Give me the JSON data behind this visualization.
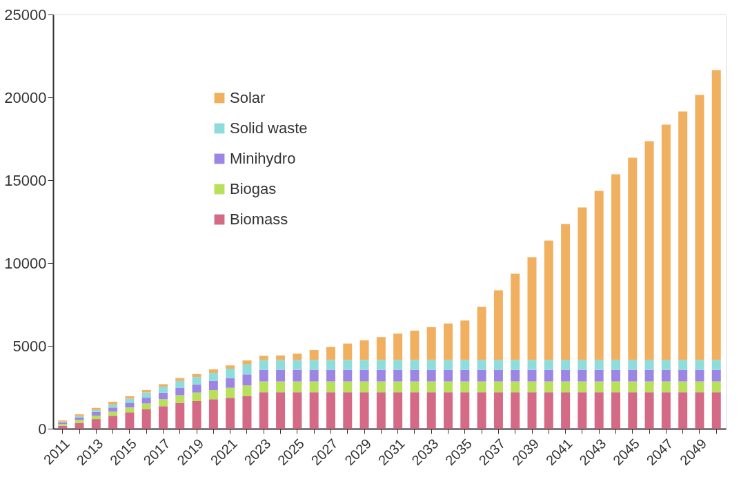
{
  "chart_data": {
    "type": "bar",
    "stacked": true,
    "categories": [
      "2011",
      null,
      "2013",
      null,
      "2015",
      null,
      "2017",
      null,
      "2019",
      null,
      "2021",
      null,
      "2023",
      null,
      "2025",
      null,
      "2027",
      null,
      "2029",
      null,
      "2031",
      null,
      "2033",
      null,
      "2035",
      null,
      "2037",
      null,
      "2039",
      null,
      "2041",
      null,
      "2043",
      null,
      "2045",
      null,
      "2047",
      null,
      "2049",
      null
    ],
    "series": [
      {
        "name": "Biomass",
        "color": "#d46a85",
        "values": [
          180,
          350,
          580,
          780,
          990,
          1170,
          1360,
          1560,
          1670,
          1780,
          1860,
          1960,
          2200,
          2200,
          2200,
          2200,
          2200,
          2200,
          2200,
          2200,
          2200,
          2200,
          2200,
          2200,
          2200,
          2200,
          2200,
          2200,
          2200,
          2200,
          2200,
          2200,
          2200,
          2200,
          2200,
          2200,
          2200,
          2200,
          2200,
          2200
        ]
      },
      {
        "name": "Biogas",
        "color": "#b8e05a",
        "values": [
          100,
          190,
          210,
          250,
          290,
          350,
          420,
          460,
          510,
          550,
          610,
          650,
          650,
          650,
          650,
          650,
          650,
          650,
          650,
          650,
          650,
          650,
          650,
          650,
          650,
          650,
          650,
          650,
          650,
          650,
          650,
          650,
          650,
          650,
          650,
          650,
          650,
          650,
          650,
          650
        ]
      },
      {
        "name": "Minihydro",
        "color": "#9d86e3",
        "values": [
          90,
          150,
          230,
          250,
          290,
          350,
          400,
          440,
          480,
          560,
          580,
          670,
          700,
          700,
          700,
          700,
          700,
          700,
          700,
          700,
          700,
          700,
          700,
          700,
          700,
          700,
          700,
          700,
          700,
          700,
          700,
          700,
          700,
          700,
          700,
          700,
          700,
          700,
          700,
          700
        ]
      },
      {
        "name": "Solid waste",
        "color": "#8fdcdc",
        "values": [
          60,
          70,
          110,
          180,
          240,
          320,
          360,
          420,
          460,
          480,
          570,
          600,
          600,
          600,
          600,
          600,
          600,
          600,
          600,
          600,
          600,
          600,
          600,
          600,
          600,
          600,
          600,
          600,
          600,
          600,
          600,
          600,
          600,
          600,
          600,
          600,
          600,
          600,
          600,
          600
        ]
      },
      {
        "name": "Solar",
        "color": "#f0b060",
        "values": [
          70,
          110,
          130,
          170,
          150,
          150,
          150,
          180,
          180,
          210,
          200,
          240,
          250,
          270,
          380,
          600,
          780,
          990,
          1180,
          1380,
          1590,
          1770,
          1980,
          2200,
          2380,
          3200,
          4200,
          5200,
          6200,
          7200,
          8200,
          9200,
          10200,
          11200,
          12200,
          13200,
          14200,
          15000,
          16000,
          17500
        ]
      }
    ],
    "ylim": [
      0,
      25000
    ],
    "yticks": [
      0,
      5000,
      10000,
      15000,
      20000,
      25000
    ],
    "grid": false,
    "legend": "top left"
  }
}
